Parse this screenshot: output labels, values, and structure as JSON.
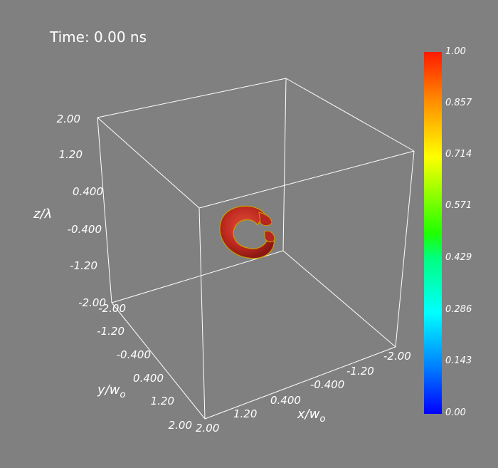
{
  "time_label": "Time: 0.00 ns",
  "axes": {
    "z": {
      "title": "z/λ",
      "ticks": [
        "2.00",
        "1.20",
        "0.400",
        "-0.400",
        "-1.20",
        "-2.00"
      ]
    },
    "y": {
      "title": "y/w",
      "title_sub": "o",
      "ticks": [
        "-2.00",
        "-1.20",
        "-0.400",
        "0.400",
        "1.20",
        "2.00"
      ]
    },
    "x": {
      "title": "x/w",
      "title_sub": "o",
      "ticks": [
        "2.00",
        "1.20",
        "0.400",
        "-0.400",
        "-1.20",
        "-2.00"
      ]
    }
  },
  "colorbar": {
    "ticks": [
      "1.00",
      "0.857",
      "0.714",
      "0.571",
      "0.429",
      "0.286",
      "0.143",
      "0.00"
    ],
    "colors": [
      "#0000ff",
      "#00a0ff",
      "#00ffff",
      "#00ff80",
      "#40ff00",
      "#ffff00",
      "#ff8000",
      "#ff0000"
    ]
  },
  "colors": {
    "background": "#808080",
    "torus": "#c42a22",
    "torus_rim": "#c8a000"
  }
}
